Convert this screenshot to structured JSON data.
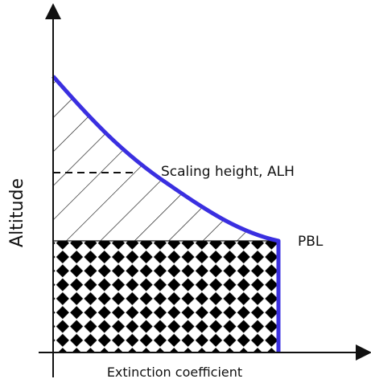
{
  "diagram": {
    "y_axis_label": "Altitude",
    "x_axis_label": "Extinction coefficient",
    "scaling_height_label": "Scaling height, ALH",
    "pbl_label": "PBL",
    "profile_color": "#3a2fe0",
    "line_color": "#111111",
    "pattern_upper": "diagonal-hatch",
    "pattern_lower": "checkerboard-diamond"
  }
}
